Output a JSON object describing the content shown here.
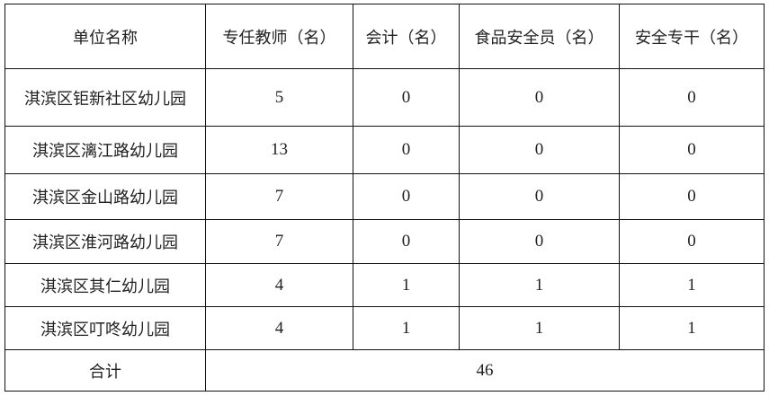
{
  "table": {
    "headers": [
      "单位名称",
      "专任教师（名）",
      "会计（名）",
      "食品安全员（名）",
      "安全专干（名）"
    ],
    "rows": [
      [
        "淇滨区钜新社区幼儿园",
        "5",
        "0",
        "0",
        "0"
      ],
      [
        "淇滨区漓江路幼儿园",
        "13",
        "0",
        "0",
        "0"
      ],
      [
        "淇滨区金山路幼儿园",
        "7",
        "0",
        "0",
        "0"
      ],
      [
        "淇滨区淮河路幼儿园",
        "7",
        "0",
        "0",
        "0"
      ],
      [
        "淇滨区其仁幼儿园",
        "4",
        "1",
        "1",
        "1"
      ],
      [
        "淇滨区叮咚幼儿园",
        "4",
        "1",
        "1",
        "1"
      ]
    ],
    "total_label": "合计",
    "total_value": "46"
  }
}
